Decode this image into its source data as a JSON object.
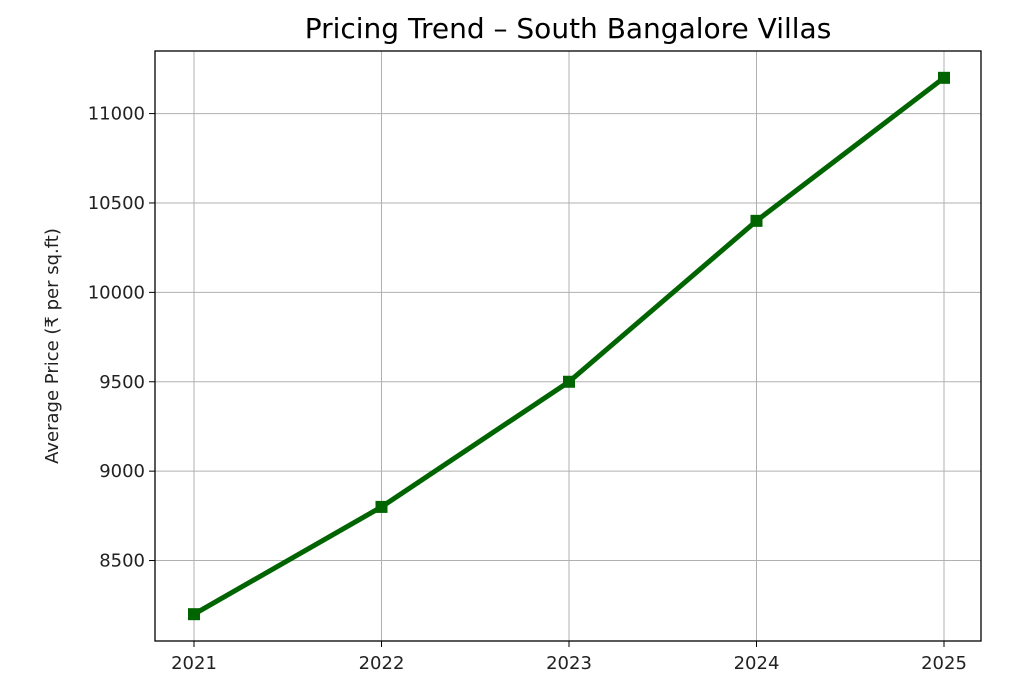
{
  "chart_data": {
    "type": "line",
    "title": "Pricing Trend – South Bangalore Villas",
    "xlabel": "",
    "ylabel": "Average Price (₹ per sq.ft)",
    "x": [
      "2021",
      "2022",
      "2023",
      "2024",
      "2025"
    ],
    "series": [
      {
        "values": [
          8200,
          8800,
          9500,
          10400,
          11200
        ],
        "color": "#006400",
        "marker": "square"
      }
    ],
    "yticks": [
      8500,
      9000,
      9500,
      10000,
      10500,
      11000
    ],
    "ylim": [
      8050,
      11350
    ],
    "grid": true
  }
}
